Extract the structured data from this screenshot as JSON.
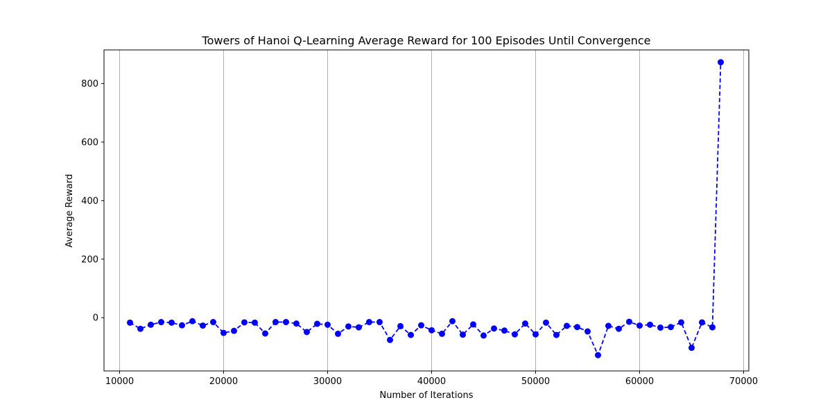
{
  "chart_data": {
    "type": "line",
    "title": "Towers of Hanoi Q-Learning Average Reward for 100 Episodes Until Convergence",
    "xlabel": "Number of Iterations",
    "ylabel": "Average Reward",
    "xlim": [
      8500,
      70500
    ],
    "ylim": [
      -182,
      915
    ],
    "x_ticks": [
      10000,
      20000,
      30000,
      40000,
      50000,
      60000,
      70000
    ],
    "y_ticks": [
      0,
      200,
      400,
      600,
      800
    ],
    "grid": "x-only",
    "line_style": "dashed",
    "marker": "circle",
    "color": "#0000ff",
    "grid_color": "#b0b0b0",
    "x": [
      11000,
      12000,
      13000,
      14000,
      15000,
      16000,
      17000,
      18000,
      19000,
      20000,
      21000,
      22000,
      23000,
      24000,
      25000,
      26000,
      27000,
      28000,
      29000,
      30000,
      31000,
      32000,
      33000,
      34000,
      35000,
      36000,
      37000,
      38000,
      39000,
      40000,
      41000,
      42000,
      43000,
      44000,
      45000,
      46000,
      47000,
      48000,
      49000,
      50000,
      51000,
      52000,
      53000,
      54000,
      55000,
      56000,
      57000,
      58000,
      59000,
      60000,
      61000,
      62000,
      63000,
      64000,
      65000,
      66000,
      67000,
      67800
    ],
    "values": [
      -17,
      -38,
      -24,
      -15,
      -17,
      -26,
      -12,
      -27,
      -15,
      -52,
      -45,
      -16,
      -17,
      -54,
      -15,
      -15,
      -20,
      -49,
      -21,
      -24,
      -55,
      -30,
      -33,
      -15,
      -15,
      -76,
      -29,
      -59,
      -26,
      -43,
      -55,
      -12,
      -58,
      -23,
      -61,
      -37,
      -44,
      -57,
      -20,
      -57,
      -17,
      -59,
      -28,
      -32,
      -47,
      -128,
      -28,
      -38,
      -14,
      -27,
      -24,
      -34,
      -32,
      -16,
      -103,
      -16,
      -33,
      873
    ]
  }
}
